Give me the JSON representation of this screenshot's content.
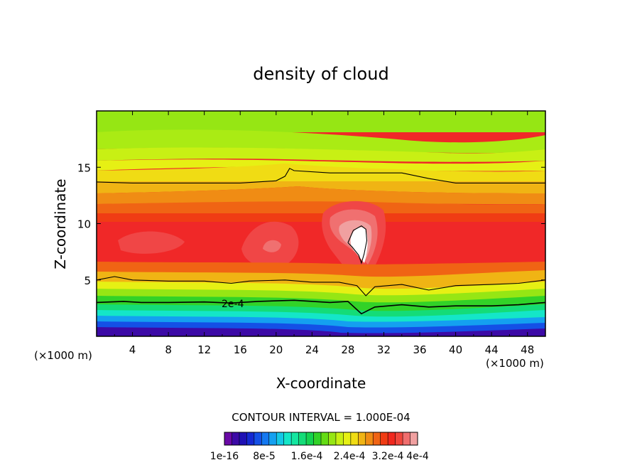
{
  "chart_data": {
    "type": "heatmap",
    "title": "density of cloud",
    "xlabel": "X-coordinate",
    "ylabel": "Z-coordinate",
    "x_unit_left": "(×1000 m)",
    "x_unit_right": "(×1000 m)",
    "xlim": [
      0,
      50
    ],
    "ylim": [
      0,
      20
    ],
    "x_ticks": [
      4,
      8,
      12,
      16,
      20,
      24,
      28,
      32,
      36,
      40,
      44,
      48
    ],
    "y_ticks": [
      5,
      10,
      15
    ],
    "contour_interval_text": "CONTOUR INTERVAL = 1.000E-04",
    "contour_label": "2e-4",
    "colorbar": {
      "tick_labels": [
        "1e-16",
        "8e-5",
        "1.6e-4",
        "2.4e-4",
        "3.2e-4",
        "4e-4"
      ],
      "colors": [
        "#6a0aa6",
        "#3c0aa6",
        "#1e10b4",
        "#1428d2",
        "#1450e6",
        "#1478f0",
        "#14a0f0",
        "#14c8e6",
        "#14e6c8",
        "#14e6a0",
        "#14dc78",
        "#14d250",
        "#32d228",
        "#64dc14",
        "#96e614",
        "#c8f014",
        "#e6f014",
        "#f0dc14",
        "#f0b414",
        "#f08c14",
        "#f06414",
        "#f03c14",
        "#f0281e",
        "#f0463c",
        "#f06e6e",
        "#f0a0a0"
      ]
    },
    "contour_lines": [
      {
        "level": "2e-4",
        "points": [
          [
            0,
            3.0
          ],
          [
            3,
            3.1
          ],
          [
            5,
            3.0
          ],
          [
            8,
            3.0
          ],
          [
            12,
            3.05
          ],
          [
            15,
            2.95
          ],
          [
            18,
            3.1
          ],
          [
            22,
            3.2
          ],
          [
            26,
            3.0
          ],
          [
            28,
            3.1
          ],
          [
            29.5,
            2.0
          ],
          [
            31,
            2.6
          ],
          [
            34,
            2.8
          ],
          [
            37,
            2.6
          ],
          [
            40,
            2.7
          ],
          [
            44,
            2.7
          ],
          [
            47,
            2.8
          ],
          [
            50,
            3.0
          ]
        ]
      },
      {
        "level": "3e-4",
        "points": [
          [
            0,
            5.0
          ],
          [
            2,
            5.3
          ],
          [
            4,
            5.0
          ],
          [
            8,
            4.9
          ],
          [
            12,
            4.9
          ],
          [
            15,
            4.7
          ],
          [
            17,
            4.9
          ],
          [
            21,
            5.0
          ],
          [
            24,
            4.8
          ],
          [
            27,
            4.8
          ],
          [
            29,
            4.5
          ],
          [
            30,
            3.6
          ],
          [
            31,
            4.4
          ],
          [
            34,
            4.6
          ],
          [
            37,
            4.1
          ],
          [
            40,
            4.5
          ],
          [
            44,
            4.6
          ],
          [
            47,
            4.7
          ],
          [
            50,
            5.0
          ]
        ]
      },
      {
        "level": "3e-4",
        "points": [
          [
            0,
            13.7
          ],
          [
            4,
            13.6
          ],
          [
            8,
            13.6
          ],
          [
            12,
            13.6
          ],
          [
            16,
            13.6
          ],
          [
            20,
            13.8
          ],
          [
            21,
            14.2
          ],
          [
            21.5,
            14.9
          ],
          [
            22,
            14.7
          ],
          [
            26,
            14.5
          ],
          [
            30,
            14.5
          ],
          [
            34,
            14.5
          ],
          [
            37,
            14.0
          ],
          [
            40,
            13.6
          ],
          [
            44,
            13.6
          ],
          [
            48,
            13.6
          ],
          [
            50,
            13.6
          ]
        ]
      },
      {
        "level": "4e-4",
        "points": [
          [
            28,
            8.3
          ],
          [
            28.6,
            9.4
          ],
          [
            29.5,
            9.8
          ],
          [
            30,
            9.5
          ],
          [
            30.1,
            8.5
          ],
          [
            29.8,
            7.3
          ],
          [
            29.5,
            6.5
          ],
          [
            29.2,
            7.2
          ],
          [
            28.5,
            7.9
          ],
          [
            28,
            8.3
          ]
        ]
      }
    ]
  }
}
